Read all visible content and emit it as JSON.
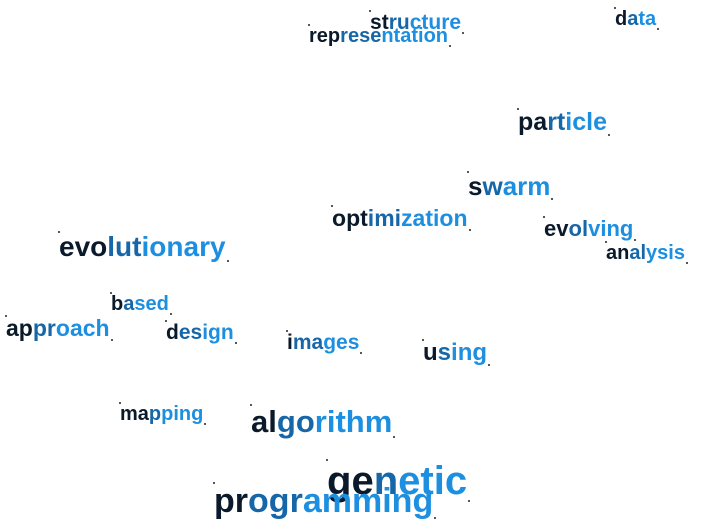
{
  "palette": {
    "dark": "#0b1a2a",
    "mid": "#1767a8",
    "light": "#1d8fe0"
  },
  "words": [
    {
      "id": "structure",
      "text": "structure"
    },
    {
      "id": "representation",
      "text": "representation"
    },
    {
      "id": "data",
      "text": "data"
    },
    {
      "id": "particle",
      "text": "particle"
    },
    {
      "id": "swarm",
      "text": "swarm"
    },
    {
      "id": "optimization",
      "text": "optimization"
    },
    {
      "id": "evolving",
      "text": "evolving"
    },
    {
      "id": "analysis",
      "text": "analysis"
    },
    {
      "id": "evolutionary",
      "text": "evolutionary"
    },
    {
      "id": "based",
      "text": "based"
    },
    {
      "id": "approach",
      "text": "approach"
    },
    {
      "id": "design",
      "text": "design"
    },
    {
      "id": "images",
      "text": "images"
    },
    {
      "id": "using",
      "text": "using"
    },
    {
      "id": "mapping",
      "text": "mapping"
    },
    {
      "id": "algorithm",
      "text": "algorithm"
    },
    {
      "id": "genetic",
      "text": "genetic"
    },
    {
      "id": "programming",
      "text": "programming"
    }
  ]
}
